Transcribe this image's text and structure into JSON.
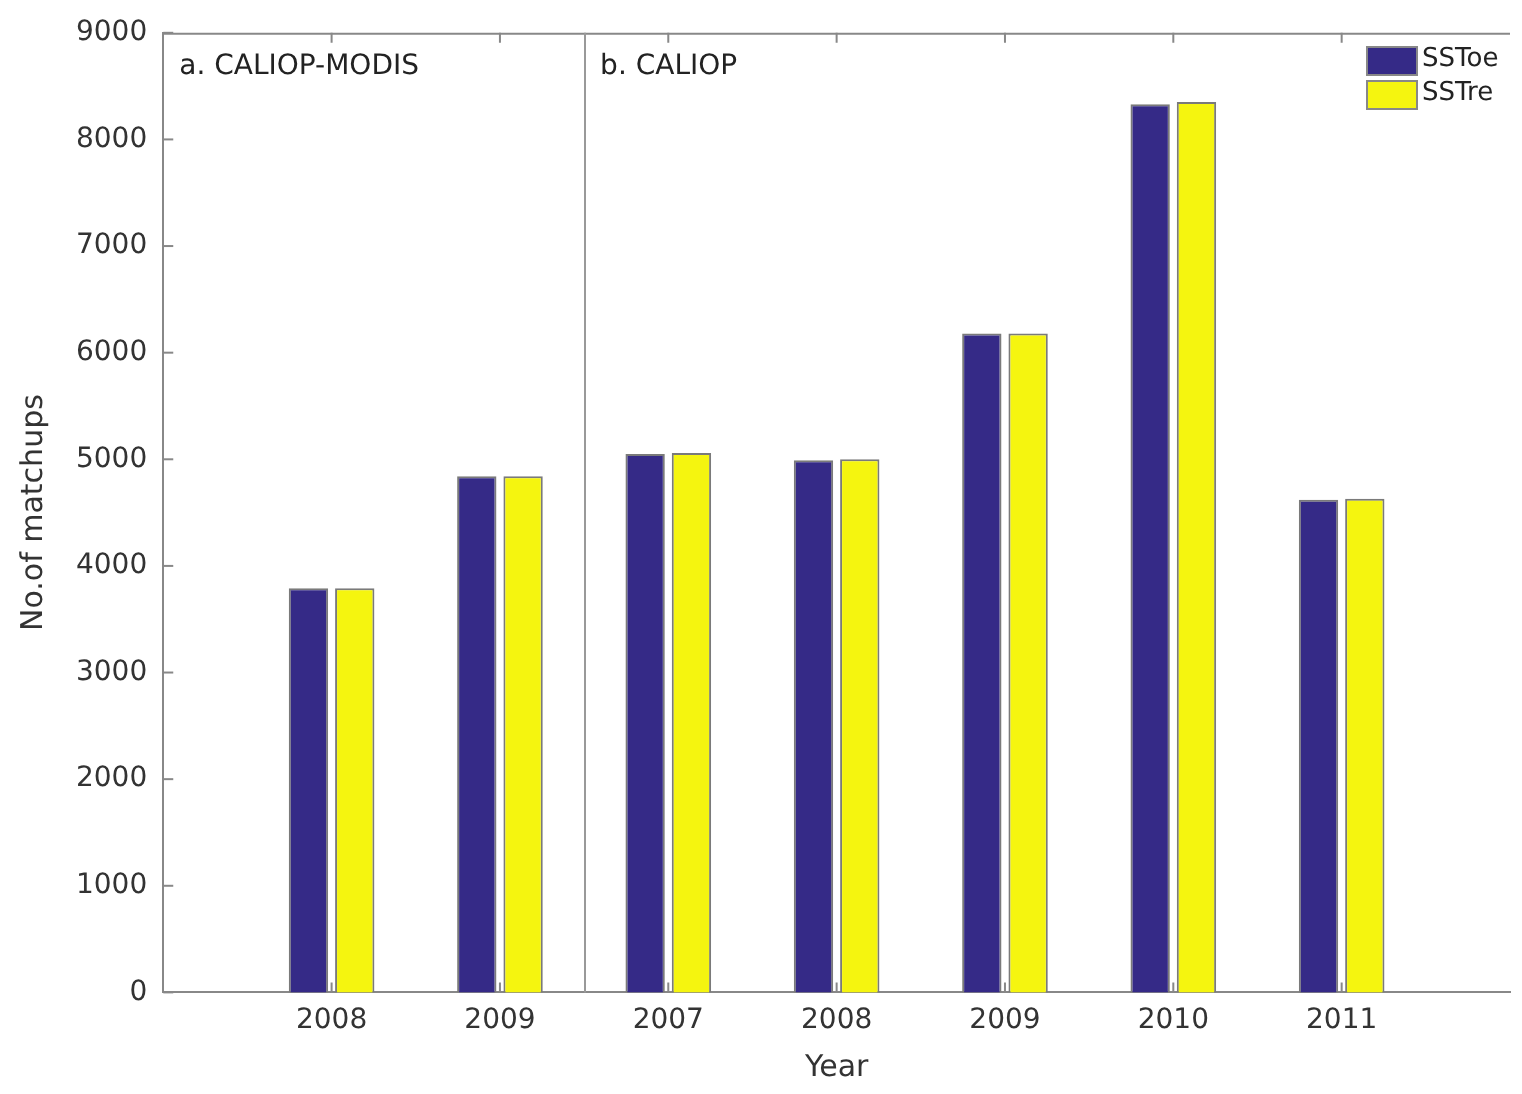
{
  "chart_data": {
    "type": "bar",
    "xlabel": "Year",
    "ylabel": "No.of matchups",
    "categories": [
      null,
      "2008",
      "2009",
      "2007",
      "2008",
      "2009",
      "2010",
      "2011",
      null
    ],
    "series": [
      {
        "name": "SSToe",
        "color": "#352a87",
        "values": [
          null,
          3790,
          4840,
          5050,
          4990,
          6180,
          8330,
          4620,
          null
        ]
      },
      {
        "name": "SSTre",
        "color": "#f5f50f",
        "values": [
          null,
          3790,
          4840,
          5060,
          5000,
          6180,
          8350,
          4630,
          null
        ]
      }
    ],
    "ylim": [
      0,
      9000
    ],
    "yticks": [
      0,
      1000,
      2000,
      3000,
      4000,
      5000,
      6000,
      7000,
      8000,
      9000
    ],
    "grid": false,
    "legend": "top right",
    "annotations": [
      "a. CALIOP-MODIS",
      "b. CALIOP"
    ]
  }
}
